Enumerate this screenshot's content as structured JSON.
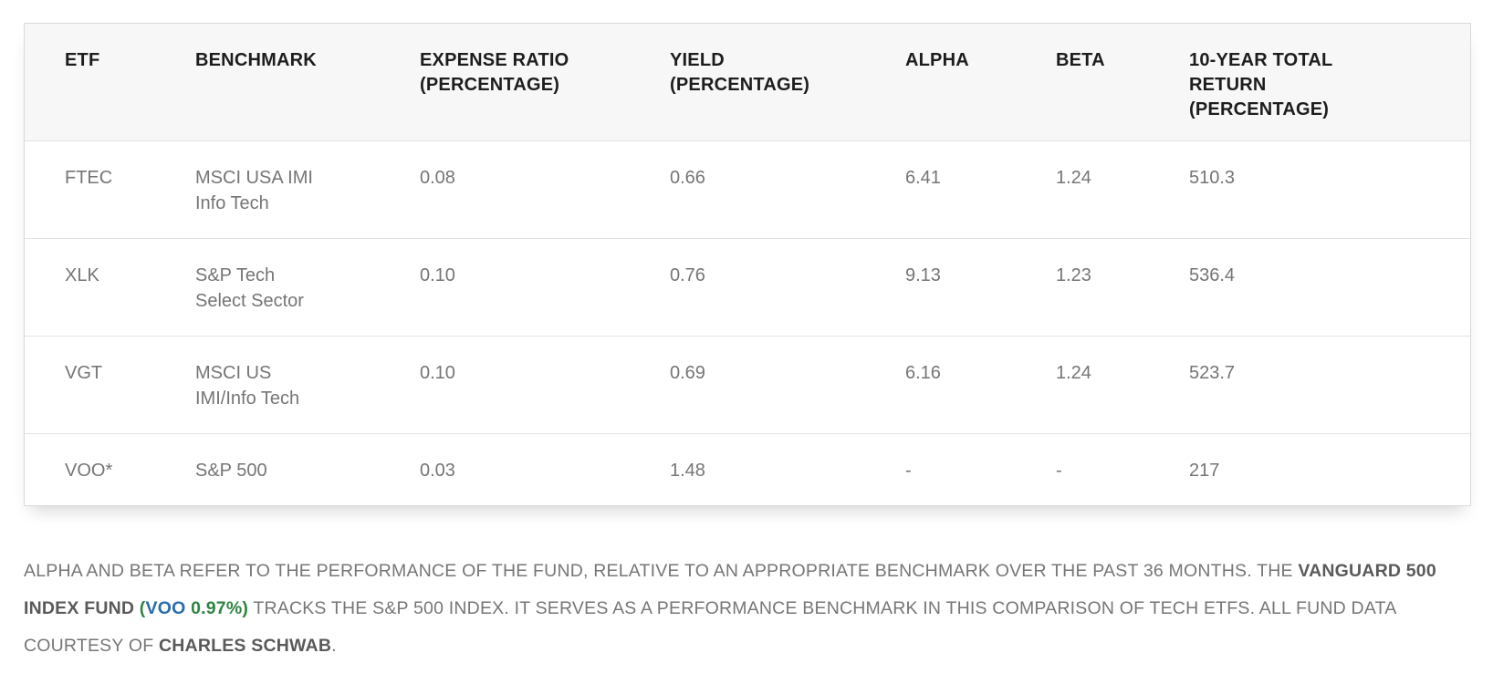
{
  "table": {
    "columns": [
      {
        "key": "etf",
        "label": "ETF"
      },
      {
        "key": "benchmark",
        "label": "BENCHMARK"
      },
      {
        "key": "expense_ratio",
        "label": "EXPENSE RATIO\n(PERCENTAGE)"
      },
      {
        "key": "yield",
        "label": "YIELD\n(PERCENTAGE)"
      },
      {
        "key": "alpha",
        "label": "ALPHA"
      },
      {
        "key": "beta",
        "label": "BETA"
      },
      {
        "key": "ten_year_total_return",
        "label": "10-YEAR TOTAL\nRETURN\n(PERCENTAGE)"
      }
    ],
    "rows": [
      {
        "etf": "FTEC",
        "benchmark": "MSCI USA IMI\nInfo Tech",
        "expense_ratio": "0.08",
        "yield": "0.66",
        "alpha": "6.41",
        "beta": "1.24",
        "ten_year_total_return": "510.3"
      },
      {
        "etf": "XLK",
        "benchmark": "S&P Tech\nSelect Sector",
        "expense_ratio": "0.10",
        "yield": "0.76",
        "alpha": "9.13",
        "beta": "1.23",
        "ten_year_total_return": "536.4"
      },
      {
        "etf": "VGT",
        "benchmark": "MSCI US\nIMI/Info Tech",
        "expense_ratio": "0.10",
        "yield": "0.69",
        "alpha": "6.16",
        "beta": "1.24",
        "ten_year_total_return": "523.7"
      },
      {
        "etf": "VOO*",
        "benchmark": "S&P 500",
        "expense_ratio": "0.03",
        "yield": "1.48",
        "alpha": "-",
        "beta": "-",
        "ten_year_total_return": "217"
      }
    ]
  },
  "footnote": {
    "segments": [
      {
        "text": "ALPHA AND BETA REFER TO THE PERFORMANCE OF THE FUND, RELATIVE TO AN APPROPRIATE BENCHMARK OVER THE PAST 36 MONTHS. THE ",
        "style": "normal",
        "name": "footnote-text"
      },
      {
        "text": "VANGUARD 500 INDEX FUND",
        "style": "bold",
        "name": "vanguard-fund-name"
      },
      {
        "text": " ",
        "style": "normal",
        "name": "footnote-text"
      },
      {
        "text": "(",
        "style": "bold-green",
        "name": "voo-quote-paren"
      },
      {
        "text": "VOO",
        "style": "bold-blue",
        "name": "voo-ticker-link",
        "interactable": true
      },
      {
        "text": " 0.97%",
        "style": "bold-green",
        "name": "voo-quote-change"
      },
      {
        "text": ")",
        "style": "bold-green",
        "name": "voo-quote-paren"
      },
      {
        "text": " TRACKS THE S&P 500 INDEX. IT SERVES AS A PERFORMANCE BENCHMARK IN THIS COMPARISON OF TECH ETFS. ALL FUND DATA COURTESY OF ",
        "style": "normal",
        "name": "footnote-text"
      },
      {
        "text": "CHARLES SCHWAB",
        "style": "bold",
        "name": "charles-schwab-name"
      },
      {
        "text": ".",
        "style": "normal",
        "name": "footnote-text"
      }
    ]
  },
  "colors": {
    "header_bg": "#f7f7f7",
    "header_text": "#1d1d1f",
    "body_text": "#757575",
    "footnote_text": "#767676",
    "ticker_blue": "#2a6cab",
    "quote_green": "#2f8540",
    "table_border": "#d9d9d9",
    "row_divider": "#e3e3e3"
  },
  "chart_data": {
    "type": "table",
    "title": "Tech ETF comparison vs VOO benchmark",
    "columns": [
      "ETF",
      "BENCHMARK",
      "EXPENSE RATIO (PERCENTAGE)",
      "YIELD (PERCENTAGE)",
      "ALPHA",
      "BETA",
      "10-YEAR TOTAL RETURN (PERCENTAGE)"
    ],
    "rows": [
      [
        "FTEC",
        "MSCI USA IMI Info Tech",
        0.08,
        0.66,
        6.41,
        1.24,
        510.3
      ],
      [
        "XLK",
        "S&P Tech Select Sector",
        0.1,
        0.76,
        9.13,
        1.23,
        536.4
      ],
      [
        "VGT",
        "MSCI US IMI/Info Tech",
        0.1,
        0.69,
        6.16,
        1.24,
        523.7
      ],
      [
        "VOO*",
        "S&P 500",
        0.03,
        1.48,
        null,
        null,
        217
      ]
    ],
    "caption": "ALPHA AND BETA REFER TO THE PERFORMANCE OF THE FUND, RELATIVE TO AN APPROPRIATE BENCHMARK OVER THE PAST 36 MONTHS. THE VANGUARD 500 INDEX FUND (VOO 0.97%) TRACKS THE S&P 500 INDEX. IT SERVES AS A PERFORMANCE BENCHMARK IN THIS COMPARISON OF TECH ETFS. ALL FUND DATA COURTESY OF CHARLES SCHWAB."
  }
}
